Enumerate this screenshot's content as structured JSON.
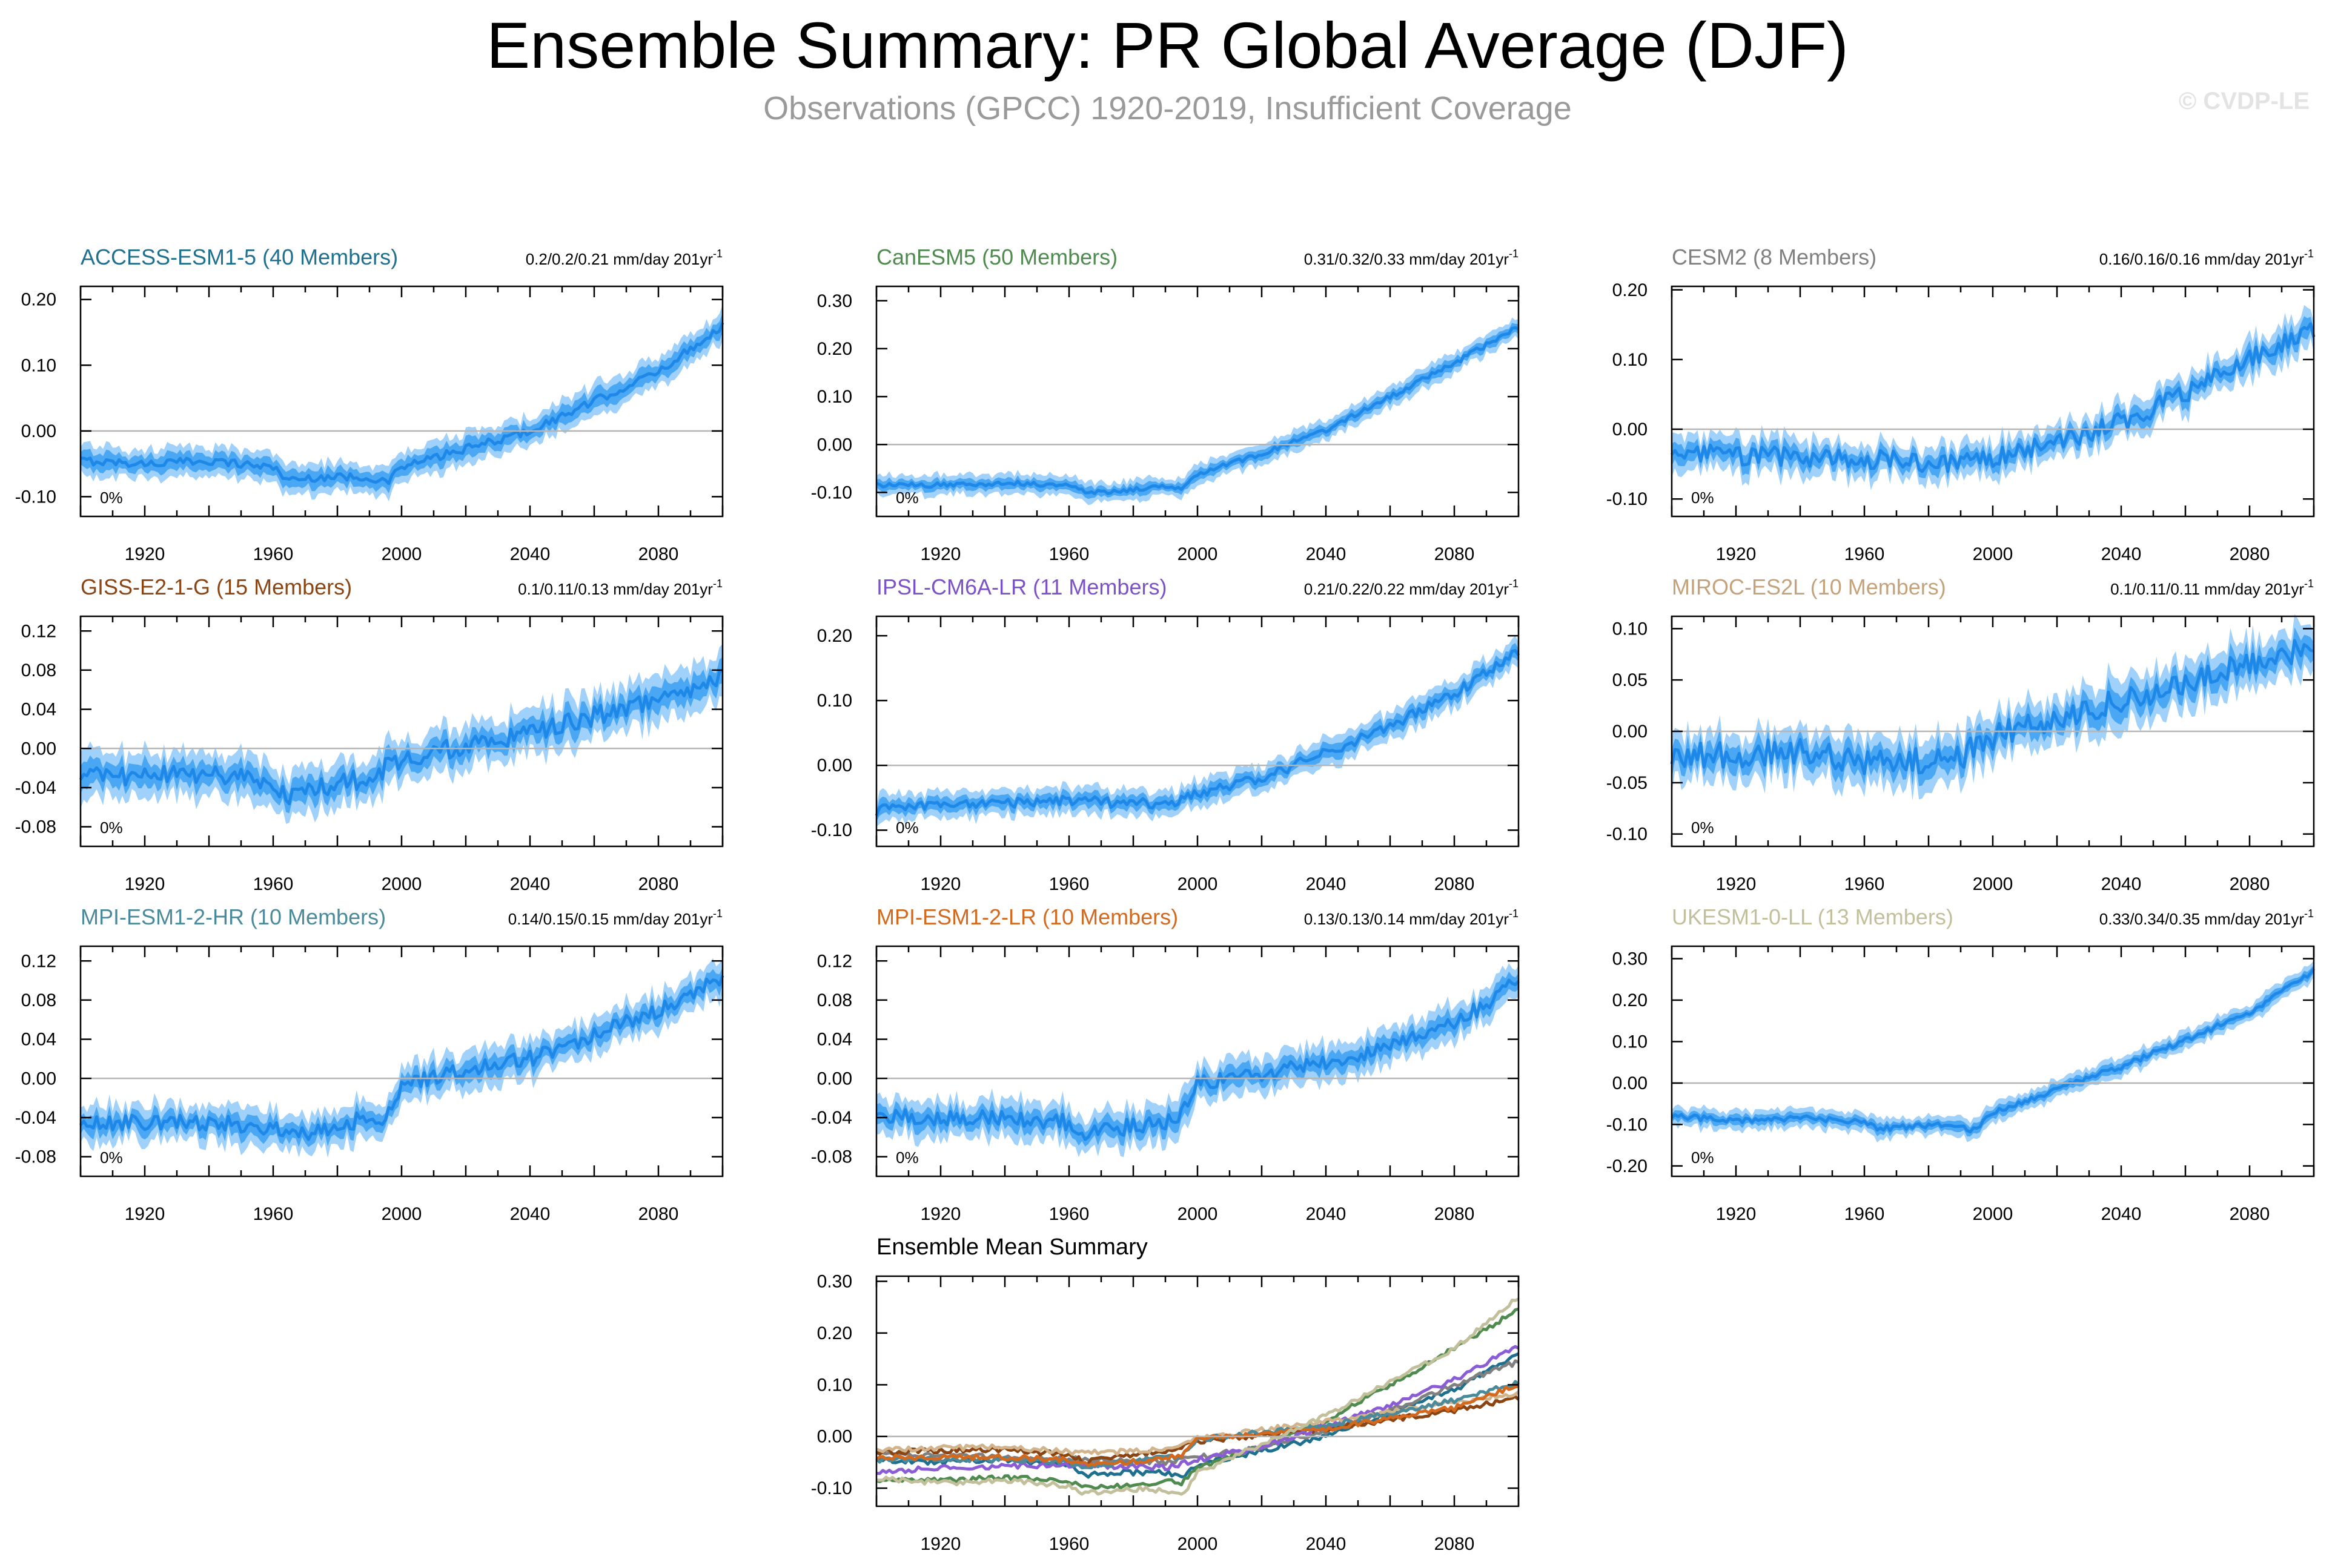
{
  "figure": {
    "title": "Ensemble Summary: PR Global Average (DJF)",
    "subtitle": "Observations (GPCC) 1920-2019, Insufficient Coverage",
    "copyright": "© CVDP-LE"
  },
  "colors": {
    "band_light": "#9fd1fa",
    "band_mid": "#4aa7f3",
    "mean_line": "#1e88e8",
    "zero_line": "#b5b5b5",
    "axis": "#000000"
  },
  "chart_data": [
    {
      "type": "line",
      "title": "ACCESS-ESM1-5 (40 Members)",
      "title_color": "#1f6f8f",
      "trend_label": "0.2/0.2/0.21 mm/day 201yr",
      "trend_sup": "-1",
      "annotation": "0%",
      "xlim": [
        1900,
        2100
      ],
      "x_ticks": [
        "1920",
        "1960",
        "2000",
        "2040",
        "2080"
      ],
      "ylim": [
        -0.13,
        0.22
      ],
      "y_ticks": [
        "0.20",
        "0.10",
        "0.00",
        "-0.10"
      ],
      "series": [
        {
          "name": "ensemble mean",
          "x": [
            1900,
            1920,
            1940,
            1960,
            1965,
            1975,
            1990,
            1995,
            2000,
            2040,
            2080,
            2100
          ],
          "values": [
            -0.045,
            -0.05,
            -0.045,
            -0.055,
            -0.075,
            -0.07,
            -0.07,
            -0.08,
            -0.055,
            0.0,
            0.09,
            0.16
          ]
        }
      ],
      "noise": 0.006,
      "band": [
        0.022,
        0.012
      ]
    },
    {
      "type": "line",
      "title": "CanESM5 (50 Members)",
      "title_color": "#4f8a4f",
      "trend_label": "0.31/0.32/0.33 mm/day 201yr",
      "trend_sup": "-1",
      "annotation": "0%",
      "xlim": [
        1900,
        2100
      ],
      "x_ticks": [
        "1920",
        "1960",
        "2000",
        "2040",
        "2080"
      ],
      "ylim": [
        -0.15,
        0.33
      ],
      "y_ticks": [
        "0.30",
        "0.20",
        "0.10",
        "0.00",
        "-0.10"
      ],
      "series": [
        {
          "name": "ensemble mean",
          "x": [
            1900,
            1920,
            1940,
            1960,
            1965,
            1980,
            1990,
            1995,
            2000,
            2020,
            2040,
            2060,
            2080,
            2100
          ],
          "values": [
            -0.085,
            -0.085,
            -0.08,
            -0.085,
            -0.1,
            -0.095,
            -0.085,
            -0.09,
            -0.06,
            -0.02,
            0.03,
            0.1,
            0.17,
            0.245
          ]
        }
      ],
      "noise": 0.005,
      "band": [
        0.02,
        0.01
      ]
    },
    {
      "type": "line",
      "title": "CESM2 (8 Members)",
      "title_color": "#808080",
      "trend_label": "0.16/0.16/0.16 mm/day 201yr",
      "trend_sup": "-1",
      "annotation": "0%",
      "xlim": [
        1900,
        2100
      ],
      "x_ticks": [
        "1920",
        "1960",
        "2000",
        "2040",
        "2080"
      ],
      "ylim": [
        -0.125,
        0.205
      ],
      "y_ticks": [
        "0.20",
        "0.10",
        "0.00",
        "-0.10"
      ],
      "series": [
        {
          "name": "ensemble mean",
          "x": [
            1900,
            1940,
            1970,
            1990,
            2000,
            2020,
            2040,
            2060,
            2080,
            2100
          ],
          "values": [
            -0.035,
            -0.04,
            -0.045,
            -0.05,
            -0.04,
            -0.02,
            0.01,
            0.05,
            0.1,
            0.145
          ]
        }
      ],
      "noise": 0.014,
      "band": [
        0.024,
        0.012
      ]
    },
    {
      "type": "line",
      "title": "GISS-E2-1-G (15 Members)",
      "title_color": "#8b4513",
      "trend_label": "0.1/0.11/0.13 mm/day 201yr",
      "trend_sup": "-1",
      "annotation": "0%",
      "xlim": [
        1900,
        2100
      ],
      "x_ticks": [
        "1920",
        "1960",
        "2000",
        "2040",
        "2080"
      ],
      "ylim": [
        -0.1,
        0.135
      ],
      "y_ticks": [
        "0.12",
        "0.08",
        "0.04",
        "0.00",
        "-0.04",
        "-0.08"
      ],
      "series": [
        {
          "name": "ensemble mean",
          "x": [
            1900,
            1940,
            1960,
            1965,
            1980,
            1990,
            2000,
            2040,
            2080,
            2100
          ],
          "values": [
            -0.03,
            -0.025,
            -0.035,
            -0.05,
            -0.035,
            -0.03,
            -0.01,
            0.015,
            0.05,
            0.075
          ]
        }
      ],
      "noise": 0.01,
      "band": [
        0.022,
        0.011
      ]
    },
    {
      "type": "line",
      "title": "IPSL-CM6A-LR (11 Members)",
      "title_color": "#7b52c7",
      "trend_label": "0.21/0.22/0.22 mm/day 201yr",
      "trend_sup": "-1",
      "annotation": "0%",
      "xlim": [
        1900,
        2100
      ],
      "x_ticks": [
        "1920",
        "1960",
        "2000",
        "2040",
        "2080"
      ],
      "ylim": [
        -0.125,
        0.23
      ],
      "y_ticks": [
        "0.20",
        "0.10",
        "0.00",
        "-0.10"
      ],
      "series": [
        {
          "name": "ensemble mean",
          "x": [
            1900,
            1920,
            1960,
            1990,
            2000,
            2020,
            2040,
            2060,
            2080,
            2100
          ],
          "values": [
            -0.07,
            -0.06,
            -0.055,
            -0.06,
            -0.045,
            -0.02,
            0.02,
            0.06,
            0.11,
            0.175
          ]
        }
      ],
      "noise": 0.008,
      "band": [
        0.02,
        0.01
      ]
    },
    {
      "type": "line",
      "title": "MIROC-ES2L (10 Members)",
      "title_color": "#c4a27a",
      "trend_label": "0.1/0.11/0.11 mm/day 201yr",
      "trend_sup": "-1",
      "annotation": "0%",
      "xlim": [
        1900,
        2100
      ],
      "x_ticks": [
        "1920",
        "1960",
        "2000",
        "2040",
        "2080"
      ],
      "ylim": [
        -0.112,
        0.112
      ],
      "y_ticks": [
        "0.10",
        "0.05",
        "0.00",
        "-0.05",
        "-0.10"
      ],
      "series": [
        {
          "name": "ensemble mean",
          "x": [
            1900,
            1940,
            1960,
            1975,
            1990,
            2000,
            2040,
            2080,
            2100
          ],
          "values": [
            -0.025,
            -0.02,
            -0.03,
            -0.03,
            -0.025,
            -0.005,
            0.03,
            0.065,
            0.085
          ]
        }
      ],
      "noise": 0.013,
      "band": [
        0.022,
        0.011
      ]
    },
    {
      "type": "line",
      "title": "MPI-ESM1-2-HR (10 Members)",
      "title_color": "#4a8a9a",
      "trend_label": "0.14/0.15/0.15 mm/day 201yr",
      "trend_sup": "-1",
      "annotation": "0%",
      "xlim": [
        1900,
        2100
      ],
      "x_ticks": [
        "1920",
        "1960",
        "2000",
        "2040",
        "2080"
      ],
      "ylim": [
        -0.1,
        0.135
      ],
      "y_ticks": [
        "0.12",
        "0.08",
        "0.04",
        "0.00",
        "-0.04",
        "-0.08"
      ],
      "series": [
        {
          "name": "ensemble mean",
          "x": [
            1900,
            1940,
            1960,
            1965,
            1990,
            1995,
            2000,
            2040,
            2080,
            2100
          ],
          "values": [
            -0.045,
            -0.045,
            -0.05,
            -0.06,
            -0.04,
            -0.04,
            -0.005,
            0.02,
            0.07,
            0.105
          ]
        }
      ],
      "noise": 0.008,
      "band": [
        0.018,
        0.009
      ]
    },
    {
      "type": "line",
      "title": "MPI-ESM1-2-LR (10 Members)",
      "title_color": "#d2691e",
      "trend_label": "0.13/0.13/0.14 mm/day 201yr",
      "trend_sup": "-1",
      "annotation": "0%",
      "xlim": [
        1900,
        2100
      ],
      "x_ticks": [
        "1920",
        "1960",
        "2000",
        "2040",
        "2080"
      ],
      "ylim": [
        -0.1,
        0.135
      ],
      "y_ticks": [
        "0.12",
        "0.08",
        "0.04",
        "0.00",
        "-0.04",
        "-0.08"
      ],
      "series": [
        {
          "name": "ensemble mean",
          "x": [
            1900,
            1940,
            1960,
            1965,
            1990,
            1995,
            2000,
            2040,
            2080,
            2100
          ],
          "values": [
            -0.04,
            -0.04,
            -0.045,
            -0.055,
            -0.045,
            -0.035,
            -0.005,
            0.015,
            0.055,
            0.1
          ]
        }
      ],
      "noise": 0.008,
      "band": [
        0.018,
        0.009
      ]
    },
    {
      "type": "line",
      "title": "UKESM1-0-LL (13 Members)",
      "title_color": "#c2bf9b",
      "trend_label": "0.33/0.34/0.35 mm/day 201yr",
      "trend_sup": "-1",
      "annotation": "0%",
      "xlim": [
        1900,
        2100
      ],
      "x_ticks": [
        "1920",
        "1960",
        "2000",
        "2040",
        "2080"
      ],
      "ylim": [
        -0.225,
        0.33
      ],
      "y_ticks": [
        "0.30",
        "0.20",
        "0.10",
        "0.00",
        "-0.10",
        "-0.20"
      ],
      "series": [
        {
          "name": "ensemble mean",
          "x": [
            1900,
            1920,
            1940,
            1960,
            1965,
            1985,
            1995,
            2000,
            2040,
            2080,
            2100
          ],
          "values": [
            -0.08,
            -0.09,
            -0.085,
            -0.095,
            -0.11,
            -0.1,
            -0.115,
            -0.07,
            0.04,
            0.17,
            0.27
          ]
        }
      ],
      "noise": 0.007,
      "band": [
        0.022,
        0.011
      ]
    },
    {
      "type": "line",
      "title": "Ensemble Mean Summary",
      "title_color": "#000000",
      "xlim": [
        1900,
        2100
      ],
      "x_ticks": [
        "1920",
        "1960",
        "2000",
        "2040",
        "2080"
      ],
      "ylim": [
        -0.135,
        0.31
      ],
      "y_ticks": [
        "0.30",
        "0.20",
        "0.10",
        "0.00",
        "-0.10"
      ],
      "noise": 0.005,
      "series": [
        {
          "name": "ACCESS-ESM1-5",
          "color": "#1f6f8f",
          "x": [
            1900,
            1920,
            1940,
            1960,
            1965,
            1975,
            1990,
            1995,
            2000,
            2040,
            2080,
            2100
          ],
          "values": [
            -0.045,
            -0.05,
            -0.045,
            -0.055,
            -0.075,
            -0.07,
            -0.07,
            -0.08,
            -0.055,
            0.0,
            0.09,
            0.16
          ]
        },
        {
          "name": "CanESM5",
          "color": "#4f8a4f",
          "x": [
            1900,
            1920,
            1940,
            1960,
            1965,
            1980,
            1990,
            1995,
            2000,
            2020,
            2040,
            2060,
            2080,
            2100
          ],
          "values": [
            -0.085,
            -0.085,
            -0.08,
            -0.085,
            -0.1,
            -0.095,
            -0.085,
            -0.09,
            -0.06,
            -0.02,
            0.03,
            0.1,
            0.17,
            0.245
          ]
        },
        {
          "name": "CESM2",
          "color": "#808080",
          "x": [
            1900,
            1940,
            1970,
            1990,
            2000,
            2020,
            2040,
            2060,
            2080,
            2100
          ],
          "values": [
            -0.035,
            -0.04,
            -0.045,
            -0.05,
            -0.04,
            -0.02,
            0.01,
            0.05,
            0.1,
            0.145
          ]
        },
        {
          "name": "GISS-E2-1-G",
          "color": "#8b4513",
          "x": [
            1900,
            1940,
            1960,
            1965,
            1980,
            1990,
            2000,
            2040,
            2080,
            2100
          ],
          "values": [
            -0.03,
            -0.025,
            -0.035,
            -0.05,
            -0.035,
            -0.03,
            -0.01,
            0.015,
            0.05,
            0.075
          ]
        },
        {
          "name": "IPSL-CM6A-LR",
          "color": "#8a5cd6",
          "x": [
            1900,
            1920,
            1960,
            1990,
            2000,
            2020,
            2040,
            2060,
            2080,
            2100
          ],
          "values": [
            -0.07,
            -0.06,
            -0.055,
            -0.06,
            -0.045,
            -0.02,
            0.02,
            0.06,
            0.11,
            0.175
          ]
        },
        {
          "name": "MIROC-ES2L",
          "color": "#d2b48c",
          "x": [
            1900,
            1940,
            1960,
            1975,
            1990,
            2000,
            2040,
            2080,
            2100
          ],
          "values": [
            -0.025,
            -0.02,
            -0.03,
            -0.03,
            -0.025,
            -0.005,
            0.03,
            0.065,
            0.085
          ]
        },
        {
          "name": "MPI-ESM1-2-HR",
          "color": "#4a8a9a",
          "x": [
            1900,
            1940,
            1960,
            1965,
            1990,
            1995,
            2000,
            2040,
            2080,
            2100
          ],
          "values": [
            -0.045,
            -0.045,
            -0.05,
            -0.06,
            -0.04,
            -0.04,
            -0.005,
            0.02,
            0.07,
            0.105
          ]
        },
        {
          "name": "MPI-ESM1-2-LR",
          "color": "#d2691e",
          "x": [
            1900,
            1940,
            1960,
            1965,
            1990,
            1995,
            2000,
            2040,
            2080,
            2100
          ],
          "values": [
            -0.04,
            -0.04,
            -0.045,
            -0.055,
            -0.045,
            -0.035,
            -0.005,
            0.015,
            0.055,
            0.1
          ]
        },
        {
          "name": "UKESM1-0-LL",
          "color": "#c2bf9b",
          "x": [
            1900,
            1920,
            1940,
            1960,
            1965,
            1985,
            1995,
            2000,
            2040,
            2080,
            2100
          ],
          "values": [
            -0.08,
            -0.09,
            -0.085,
            -0.095,
            -0.11,
            -0.1,
            -0.115,
            -0.07,
            0.04,
            0.17,
            0.27
          ]
        }
      ]
    }
  ]
}
